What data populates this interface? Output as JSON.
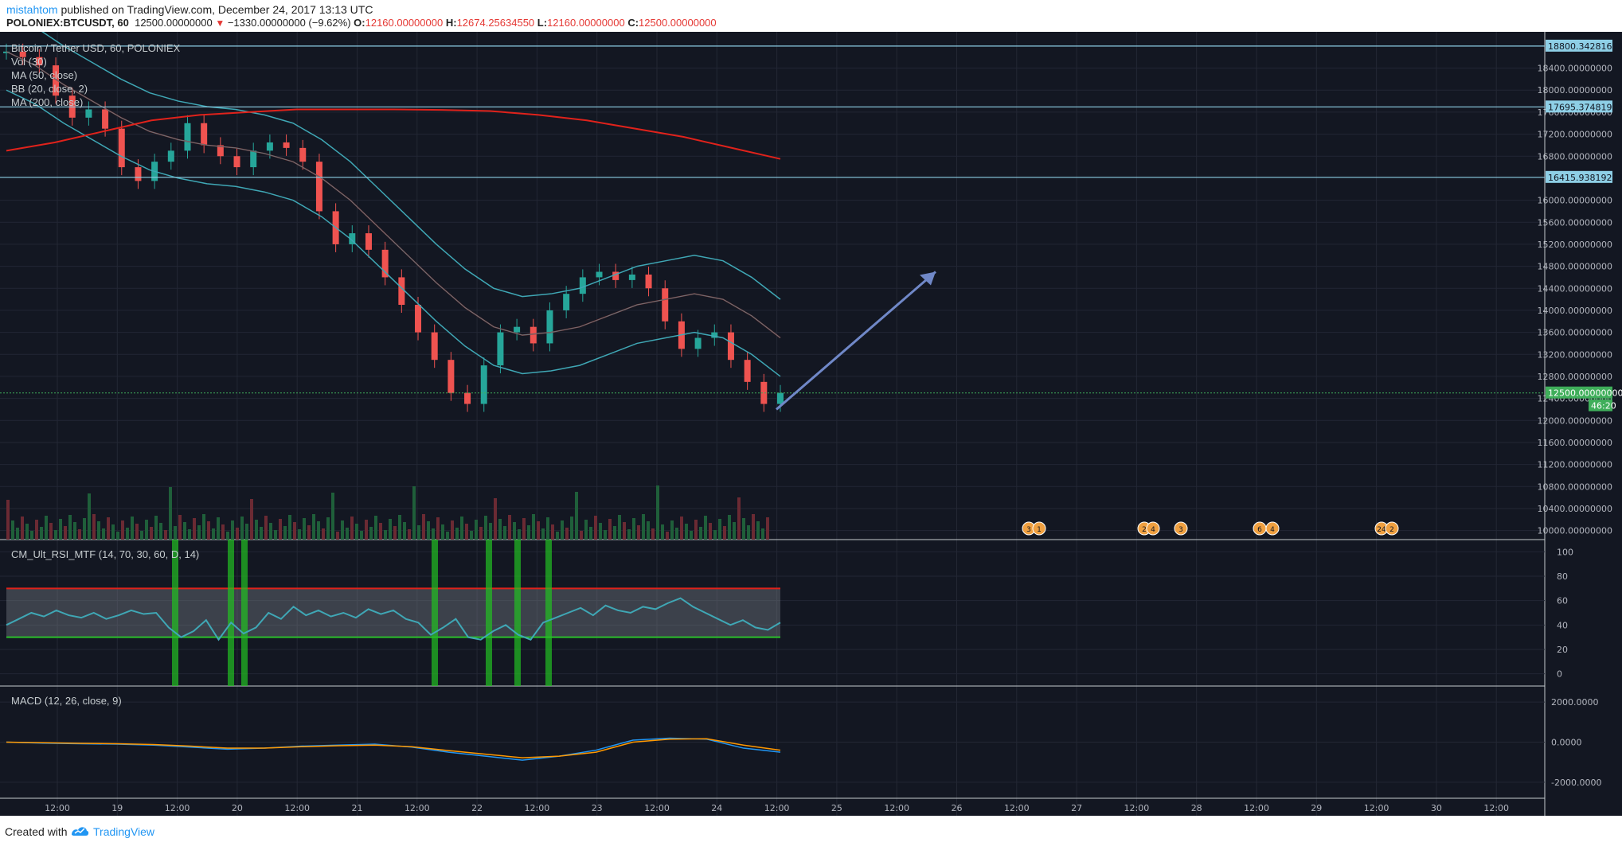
{
  "header": {
    "author": "mistahtom",
    "published_text": "published on TradingView.com, December 24, 2017 13:13 UTC",
    "symbol": "POLONIEX:BTCUSDT, 60",
    "last": "12500.00000000",
    "change": "−1330.00000000 (−9.62%)",
    "o_label": "O:",
    "o_value": "12160.00000000",
    "h_label": "H:",
    "h_value": "12674.25634550",
    "l_label": "L:",
    "l_value": "12160.00000000",
    "c_label": "C:",
    "c_value": "12500.00000000"
  },
  "legend": {
    "title": "Bitcoin / Tether USD, 60, POLONIEX",
    "vol": "Vol (30)",
    "ma50": "MA (50, close)",
    "bb": "BB (20, close, 2)",
    "ma200": "MA (200, close)",
    "rsi": "CM_Ult_RSI_MTF (14, 70, 30, 60, D, 14)",
    "macd": "MACD (12, 26, close, 9)"
  },
  "colors": {
    "background": "#131722",
    "up": "#26a69a",
    "down": "#ef5350",
    "ma200": "#e0221b",
    "ma50": "#9c2a23",
    "bb": "#3fa7b5",
    "arrow": "#7088c8",
    "hline": "#8ecfe6",
    "price_label": "#3fae5a"
  },
  "chart_data": [
    {
      "type": "line",
      "title": "Bitcoin / Tether USD, 60, POLONIEX",
      "x_ticks": [
        "12:00",
        "19",
        "12:00",
        "20",
        "12:00",
        "21",
        "12:00",
        "22",
        "12:00",
        "23",
        "12:00",
        "24",
        "12:00",
        "25",
        "12:00",
        "26",
        "12:00",
        "27",
        "12:00",
        "28",
        "12:00",
        "29",
        "12:00",
        "30",
        "12:00"
      ],
      "y_ticks": [
        "18400.00000000",
        "18000.00000000",
        "17600.00000000",
        "17200.00000000",
        "16800.00000000",
        "16000.00000000",
        "15600.00000000",
        "15200.00000000",
        "14800.00000000",
        "14400.00000000",
        "14000.00000000",
        "13600.00000000",
        "13200.00000000",
        "12800.00000000",
        "12400.00000000",
        "12000.00000000",
        "11600.00000000",
        "11200.00000000",
        "10800.00000000",
        "10400.00000000",
        "10000.00000000"
      ],
      "ylim": [
        9980,
        19030
      ],
      "horizontal_levels": [
        "18800.34281610",
        "17695.37481958",
        "16415.93819204"
      ],
      "last_price_label": "12500.00000000",
      "countdown_label": "46:20",
      "series": [
        {
          "name": "Price",
          "values": [
            18700,
            18600,
            18450,
            17900,
            17500,
            17650,
            17300,
            16600,
            16350,
            16700,
            16900,
            17400,
            17000,
            16800,
            16600,
            16900,
            17050,
            16950,
            16700,
            15800,
            15200,
            15400,
            15100,
            14600,
            14100,
            13600,
            13100,
            12500,
            12300,
            13000,
            13600,
            13700,
            13400,
            14000,
            14300,
            14600,
            14700,
            14550,
            14650,
            14400,
            13800,
            13300,
            13500,
            13600,
            13100,
            12700,
            12300,
            12500
          ]
        },
        {
          "name": "MA (200, close)",
          "values": [
            16900,
            17050,
            17250,
            17450,
            17550,
            17600,
            17650,
            17650,
            17650,
            17640,
            17620,
            17550,
            17450,
            17300,
            17150,
            16950,
            16750
          ]
        },
        {
          "name": "MA (50, close)",
          "values": [
            18700,
            18450,
            18100,
            17800,
            17500,
            17250,
            17100,
            17000,
            16950,
            16850,
            16700,
            16400,
            16000,
            15500,
            15000,
            14500,
            14050,
            13700,
            13550,
            13600,
            13700,
            13900,
            14100,
            14200,
            14300,
            14200,
            13900,
            13500
          ]
        }
      ],
      "arrow": {
        "from": [
          12100,
          12200
        ],
        "to": [
          14750,
          14700
        ]
      },
      "events": [
        "3",
        "1",
        "2",
        "4",
        "3",
        "6",
        "4",
        "24",
        "2"
      ]
    },
    {
      "type": "line",
      "title": "CM_Ult_RSI_MTF (14, 70, 30, 60, D, 14)",
      "y_ticks": [
        "100",
        "80",
        "60",
        "40",
        "20",
        "0"
      ],
      "ylim": [
        -10,
        110
      ],
      "upper_band": 70,
      "lower_band": 30,
      "values": [
        40,
        45,
        50,
        47,
        52,
        48,
        46,
        50,
        45,
        48,
        52,
        49,
        50,
        38,
        30,
        35,
        44,
        28,
        42,
        33,
        38,
        50,
        45,
        55,
        48,
        52,
        47,
        50,
        46,
        53,
        49,
        52,
        45,
        42,
        32,
        38,
        45,
        30,
        28,
        35,
        40,
        32,
        28,
        42,
        46,
        50,
        54,
        48,
        56,
        52,
        50,
        55,
        53,
        58,
        62,
        55,
        50,
        45,
        40,
        44,
        38,
        36,
        42
      ]
    },
    {
      "type": "line",
      "title": "MACD (12, 26, close, 9)",
      "y_ticks": [
        "2000.0000",
        "0.0000",
        "-2000.0000"
      ],
      "ylim": [
        -2800,
        2800
      ],
      "series": [
        {
          "name": "MACD",
          "values": [
            0,
            -50,
            -80,
            -100,
            -150,
            -250,
            -350,
            -300,
            -200,
            -150,
            -100,
            -250,
            -500,
            -700,
            -900,
            -700,
            -400,
            100,
            200,
            150,
            -300,
            -500
          ]
        },
        {
          "name": "Signal",
          "values": [
            0,
            -30,
            -60,
            -80,
            -120,
            -200,
            -300,
            -300,
            -230,
            -180,
            -150,
            -230,
            -420,
            -600,
            -780,
            -700,
            -500,
            0,
            150,
            170,
            -150,
            -400
          ]
        }
      ]
    }
  ]
}
